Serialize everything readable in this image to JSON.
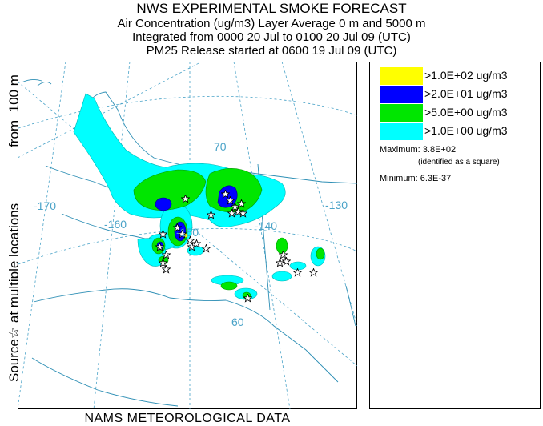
{
  "header": {
    "title": "NWS EXPERIMENTAL SMOKE FORECAST",
    "line2": "Air Concentration (ug/m3) Layer Average    0 m and  5000 m",
    "line3": "Integrated from 0000 20 Jul to 0100 20 Jul 09 (UTC)",
    "line4": "PM25 Release started at 0600 19 Jul 09 (UTC)"
  },
  "side_label": {
    "source": "Source",
    "star": "☆",
    "locations": "at multiple locations",
    "from": "from",
    "height": "100 m"
  },
  "footer": "NAMS METEOROLOGICAL DATA",
  "map": {
    "lon_labels": [
      "-170",
      "-160",
      "-150",
      "-140",
      "-130"
    ],
    "lat_labels": [
      "70",
      "60"
    ],
    "colors": {
      "land_line": "#2e8fb5",
      "grid_line": "#4aa3c8",
      "level1": "#00ffff",
      "level2": "#00e600",
      "level3": "#0000ff",
      "level4": "#ffff00"
    }
  },
  "legend": {
    "levels": [
      {
        "label": ">1.0E+02 ug/m3",
        "color": "#ffff00"
      },
      {
        "label": ">2.0E+01 ug/m3",
        "color": "#0000ff"
      },
      {
        "label": ">5.0E+00 ug/m3",
        "color": "#00e600"
      },
      {
        "label": ">1.0E+00 ug/m3",
        "color": "#00ffff"
      }
    ],
    "maximum": "Maximum: 3.8E+02",
    "max_note": "(identified as a square)",
    "minimum": "Minimum: 6.3E-37"
  }
}
